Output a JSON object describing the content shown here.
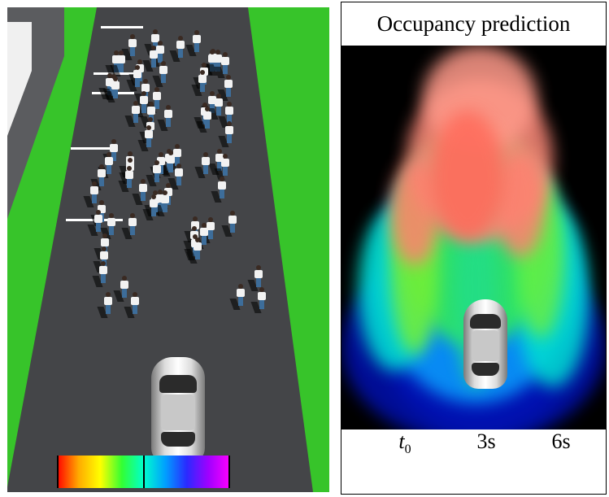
{
  "left_view": {
    "image_alt": "Simulated street scene: a crowd of pedestrians walking toward a car on a dark road between green strips"
  },
  "right_view": {
    "title": "Occupancy prediction",
    "colorbar": {
      "ticks": [
        {
          "label_main": "t",
          "label_sub": "0",
          "fraction": 0.0
        },
        {
          "label_main": "3s",
          "label_sub": "",
          "fraction": 0.5
        },
        {
          "label_main": "6s",
          "label_sub": "",
          "fraction": 1.0
        }
      ],
      "colors": [
        "#ff0000",
        "#ffaa00",
        "#ffff00",
        "#33ff33",
        "#00ffcc",
        "#00a0ff",
        "#2a2aff",
        "#a000ff",
        "#ff00ff"
      ]
    }
  }
}
